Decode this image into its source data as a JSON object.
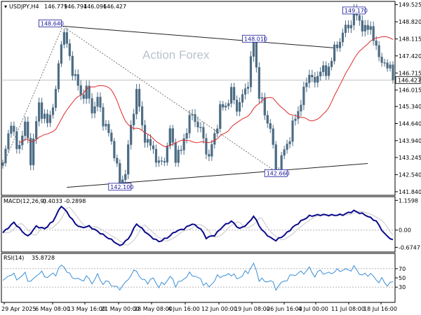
{
  "header": {
    "symbol": "USDJPY,H4",
    "open": "146.779",
    "high": "146.794",
    "low": "146.096",
    "close": "146.427"
  },
  "watermark": "Action Forex",
  "chart_data": [
    {
      "type": "candlestick",
      "y_ticks": [
        "149.525",
        "148.820",
        "148.115",
        "147.420",
        "146.715",
        "146.015",
        "145.340",
        "144.640",
        "143.940",
        "143.245",
        "142.540",
        "141.840"
      ],
      "ylim": [
        141.75,
        149.6
      ],
      "current_price": "146.427",
      "annotations": [
        {
          "label": "148.640",
          "x": 21.5,
          "y": 148.64
        },
        {
          "label": "148.010",
          "x": 90,
          "y": 148.01
        },
        {
          "label": "149.170",
          "x": 126,
          "y": 149.17
        },
        {
          "label": "142.100",
          "x": 42,
          "y": 142.1
        },
        {
          "label": "142.660",
          "x": 98,
          "y": 142.66
        }
      ],
      "x_tick_labels": [
        "29 Apr 2025",
        "6 May 08:00",
        "13 May 16:00",
        "21 May 00:00",
        "28 May 08:00",
        "4 Jun 16:00",
        "12 Jun 00:00",
        "19 Jun 08:00",
        "26 Jun 16:00",
        "4 Jul 00:00",
        "11 Jul 08:00",
        "18 Jul 16:00"
      ],
      "anchors": [
        [
          0,
          142.9
        ],
        [
          3,
          144.8
        ],
        [
          5,
          143.5
        ],
        [
          8,
          144.6
        ],
        [
          10,
          143.2
        ],
        [
          13,
          145.4
        ],
        [
          16,
          144.6
        ],
        [
          19,
          145.9
        ],
        [
          21.5,
          148.64
        ],
        [
          24,
          147.3
        ],
        [
          26,
          146.5
        ],
        [
          28,
          145.8
        ],
        [
          30,
          146.0
        ],
        [
          32,
          145.2
        ],
        [
          34,
          145.6
        ],
        [
          36,
          144.8
        ],
        [
          38,
          144.2
        ],
        [
          40,
          143.5
        ],
        [
          42,
          142.1
        ],
        [
          44,
          142.7
        ],
        [
          46,
          144.5
        ],
        [
          48,
          146.0
        ],
        [
          50,
          144.5
        ],
        [
          52,
          143.8
        ],
        [
          54,
          143.6
        ],
        [
          56,
          142.9
        ],
        [
          58,
          143.2
        ],
        [
          60,
          144.3
        ],
        [
          62,
          143.3
        ],
        [
          64,
          143.5
        ],
        [
          66,
          144.5
        ],
        [
          68,
          145.0
        ],
        [
          70,
          144.6
        ],
        [
          72,
          144.0
        ],
        [
          74,
          143.2
        ],
        [
          76,
          144.2
        ],
        [
          78,
          145.2
        ],
        [
          80,
          145.4
        ],
        [
          82,
          145.9
        ],
        [
          84,
          145.3
        ],
        [
          86,
          145.7
        ],
        [
          88,
          146.4
        ],
        [
          90,
          148.01
        ],
        [
          92,
          145.9
        ],
        [
          94,
          145.0
        ],
        [
          96,
          144.5
        ],
        [
          98,
          142.66
        ],
        [
          100,
          143.2
        ],
        [
          102,
          143.8
        ],
        [
          104,
          144.5
        ],
        [
          106,
          145.2
        ],
        [
          108,
          145.9
        ],
        [
          110,
          146.8
        ],
        [
          112,
          146.2
        ],
        [
          114,
          147.0
        ],
        [
          116,
          146.6
        ],
        [
          118,
          147.4
        ],
        [
          120,
          147.8
        ],
        [
          122,
          148.4
        ],
        [
          124,
          148.6
        ],
        [
          126,
          149.17
        ],
        [
          128,
          148.9
        ],
        [
          130,
          148.4
        ],
        [
          132,
          148.7
        ],
        [
          134,
          147.6
        ],
        [
          136,
          147.3
        ],
        [
          138,
          146.8
        ],
        [
          139,
          147.1
        ],
        [
          140,
          146.43
        ]
      ],
      "candle_count": 141
    },
    {
      "type": "line",
      "name": "MACD(12,26,9)",
      "values_text": "-0.4033 -0.2898",
      "y_ticks": [
        "1.1598",
        "0.00",
        "-0.6747"
      ],
      "ylim": [
        -0.8,
        1.25
      ],
      "macd_anchors": [
        [
          0,
          -0.1
        ],
        [
          4,
          0.3
        ],
        [
          7,
          -0.05
        ],
        [
          9,
          -0.25
        ],
        [
          12,
          0.15
        ],
        [
          15,
          0.05
        ],
        [
          18,
          0.35
        ],
        [
          21,
          0.95
        ],
        [
          23,
          0.7
        ],
        [
          26,
          0.25
        ],
        [
          28,
          0.1
        ],
        [
          31,
          0.15
        ],
        [
          34,
          -0.05
        ],
        [
          37,
          -0.25
        ],
        [
          40,
          -0.45
        ],
        [
          42,
          -0.62
        ],
        [
          45,
          -0.35
        ],
        [
          48,
          0.25
        ],
        [
          50,
          0.05
        ],
        [
          53,
          -0.25
        ],
        [
          56,
          -0.45
        ],
        [
          59,
          -0.3
        ],
        [
          62,
          -0.05
        ],
        [
          65,
          0.05
        ],
        [
          68,
          0.25
        ],
        [
          71,
          0.05
        ],
        [
          73,
          -0.3
        ],
        [
          76,
          -0.2
        ],
        [
          79,
          0.15
        ],
        [
          82,
          0.35
        ],
        [
          85,
          0.05
        ],
        [
          88,
          0.25
        ],
        [
          90,
          0.55
        ],
        [
          93,
          0.0
        ],
        [
          96,
          -0.3
        ],
        [
          98,
          -0.4
        ],
        [
          101,
          -0.2
        ],
        [
          104,
          0.1
        ],
        [
          107,
          0.35
        ],
        [
          110,
          0.55
        ],
        [
          114,
          0.6
        ],
        [
          118,
          0.58
        ],
        [
          122,
          0.6
        ],
        [
          126,
          0.75
        ],
        [
          130,
          0.6
        ],
        [
          134,
          0.35
        ],
        [
          137,
          -0.15
        ],
        [
          140,
          -0.4
        ]
      ],
      "signal_lag": 2.5
    },
    {
      "type": "line",
      "name": "RSI(14)",
      "value_text": "35.8728",
      "y_ticks": [
        "70",
        "50",
        "30"
      ],
      "ylim": [
        0,
        100
      ],
      "rsi_anchors": [
        [
          0,
          42
        ],
        [
          3,
          60
        ],
        [
          5,
          48
        ],
        [
          8,
          58
        ],
        [
          10,
          40
        ],
        [
          13,
          62
        ],
        [
          16,
          52
        ],
        [
          19,
          60
        ],
        [
          21.5,
          80
        ],
        [
          24,
          55
        ],
        [
          26,
          50
        ],
        [
          28,
          44
        ],
        [
          30,
          52
        ],
        [
          32,
          40
        ],
        [
          34,
          55
        ],
        [
          36,
          38
        ],
        [
          38,
          42
        ],
        [
          40,
          30
        ],
        [
          42,
          28
        ],
        [
          44,
          38
        ],
        [
          46,
          58
        ],
        [
          48,
          66
        ],
        [
          50,
          45
        ],
        [
          52,
          42
        ],
        [
          54,
          48
        ],
        [
          56,
          32
        ],
        [
          58,
          38
        ],
        [
          60,
          52
        ],
        [
          62,
          36
        ],
        [
          64,
          42
        ],
        [
          66,
          55
        ],
        [
          68,
          58
        ],
        [
          70,
          50
        ],
        [
          72,
          40
        ],
        [
          74,
          30
        ],
        [
          76,
          46
        ],
        [
          78,
          55
        ],
        [
          80,
          54
        ],
        [
          82,
          60
        ],
        [
          84,
          48
        ],
        [
          86,
          56
        ],
        [
          88,
          64
        ],
        [
          90,
          80
        ],
        [
          92,
          48
        ],
        [
          94,
          42
        ],
        [
          96,
          45
        ],
        [
          98,
          28
        ],
        [
          100,
          38
        ],
        [
          102,
          48
        ],
        [
          104,
          56
        ],
        [
          106,
          60
        ],
        [
          108,
          62
        ],
        [
          110,
          70
        ],
        [
          112,
          55
        ],
        [
          114,
          66
        ],
        [
          116,
          58
        ],
        [
          118,
          62
        ],
        [
          120,
          65
        ],
        [
          122,
          68
        ],
        [
          124,
          66
        ],
        [
          126,
          73
        ],
        [
          128,
          60
        ],
        [
          130,
          55
        ],
        [
          132,
          60
        ],
        [
          134,
          44
        ],
        [
          136,
          46
        ],
        [
          138,
          34
        ],
        [
          139,
          42
        ],
        [
          140,
          36
        ]
      ]
    }
  ],
  "colors": {
    "candle": "#4c6c84",
    "ma": "#dd2a2a",
    "macd": "#0a0a8c",
    "signal": "#c8c8c8",
    "rsi": "#3a8fd6"
  }
}
